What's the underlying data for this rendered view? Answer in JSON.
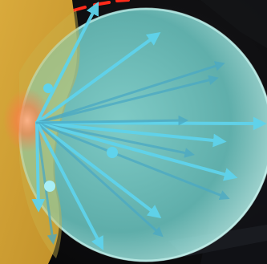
{
  "scene": {
    "subject": "translucent-sphere-with-radiating-vectors",
    "colors": {
      "background": "#0b0b0c",
      "sphere_fill": "#7fd9d6",
      "sphere_rim": "#bff3f0",
      "arrow": "#5fd3ec",
      "arrow_dim": "#4aa9c4",
      "surface": "#d6a73a",
      "glow": "#ff8a5a",
      "red_dashes": "#ff2a1a",
      "dark_structure": "#1a1c22"
    },
    "arrow_count": 15,
    "small_sphere_count": 3
  }
}
